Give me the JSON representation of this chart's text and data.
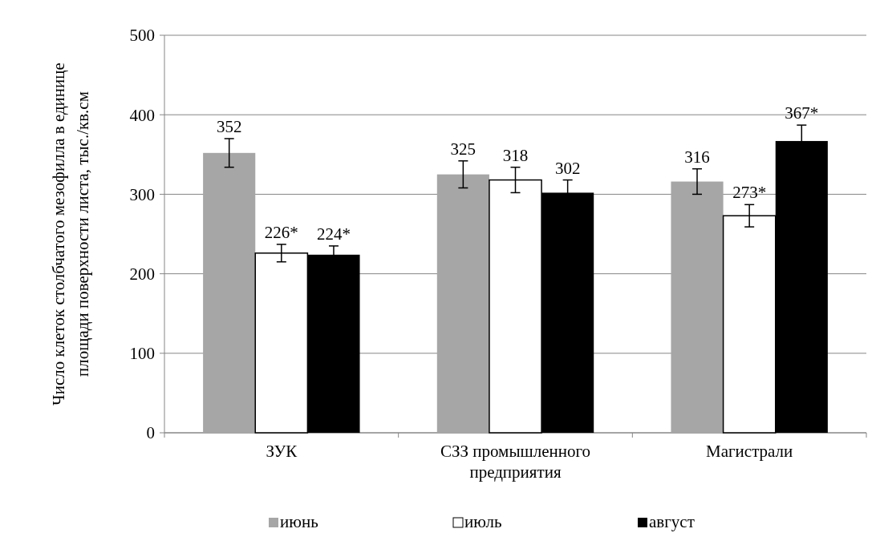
{
  "chart_data": {
    "type": "bar",
    "ylabel": "Число клеток столбчатого мезофилла в единице площади поверхности листа, тыс./кв.см",
    "categories": [
      "ЗУК",
      "СЗЗ промышленного предприятия",
      "Магистрали"
    ],
    "series": [
      {
        "name": "июнь",
        "color": "#a6a6a6",
        "values": [
          352,
          325,
          316
        ],
        "errors": [
          18,
          17,
          16
        ],
        "value_labels": [
          "352",
          "325",
          "316"
        ]
      },
      {
        "name": "июль",
        "color": "#ffffff",
        "values": [
          226,
          318,
          273
        ],
        "errors": [
          11,
          16,
          14
        ],
        "value_labels": [
          "226*",
          "318",
          "273*"
        ]
      },
      {
        "name": "август",
        "color": "#000000",
        "values": [
          224,
          302,
          367
        ],
        "errors": [
          11,
          16,
          20
        ],
        "value_labels": [
          "224*",
          "302",
          "367*"
        ]
      }
    ],
    "ylim": [
      0,
      500
    ],
    "yticks": [
      0,
      100,
      200,
      300,
      400,
      500
    ],
    "grid": "y",
    "legend": "bottom"
  }
}
